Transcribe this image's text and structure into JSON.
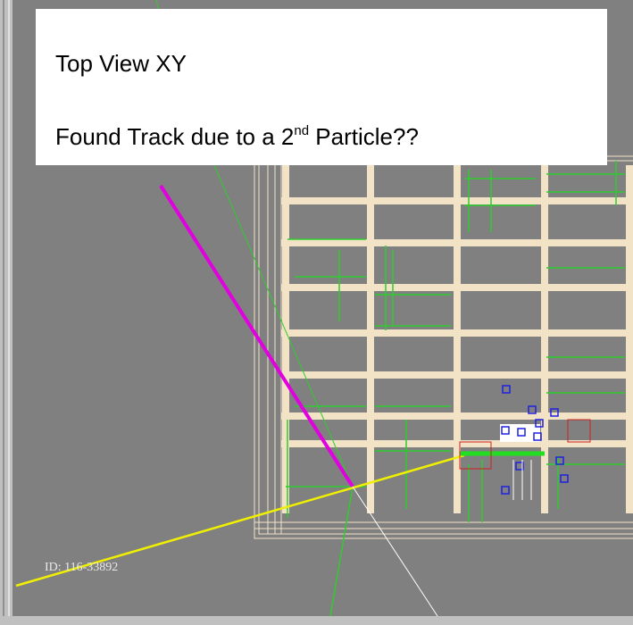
{
  "overlay": {
    "title": "Top View XY",
    "subtitle": {
      "before": "Found Track due to a 2",
      "superscript": "nd",
      "after": " Particle??"
    }
  },
  "event_id": "ID: 116-33892"
}
